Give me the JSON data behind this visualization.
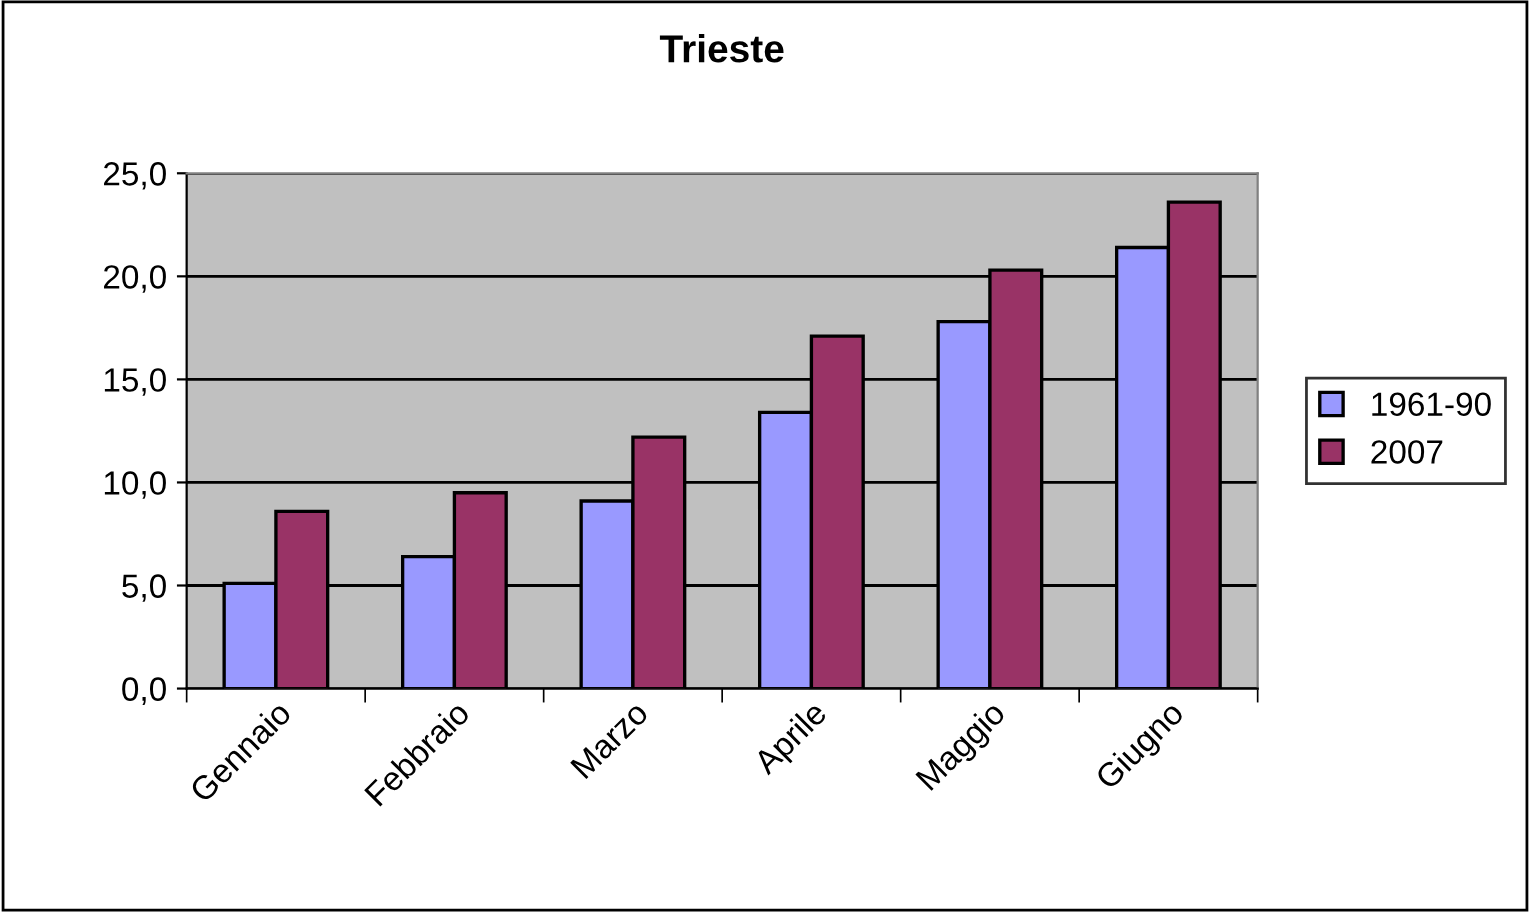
{
  "chart_data": {
    "type": "bar",
    "title": "Trieste",
    "categories": [
      "Gennaio",
      "Febbraio",
      "Marzo",
      "Aprile",
      "Maggio",
      "Giugno"
    ],
    "series": [
      {
        "name": "1961-90",
        "color": "#9999ff",
        "values": [
          5.1,
          6.4,
          9.1,
          13.4,
          17.8,
          21.4
        ]
      },
      {
        "name": "2007",
        "color": "#993366",
        "values": [
          8.6,
          9.5,
          12.2,
          17.1,
          20.3,
          23.6
        ]
      }
    ],
    "ylim": [
      0,
      25
    ],
    "yticks": [
      {
        "value": 0,
        "label": "0,0"
      },
      {
        "value": 5,
        "label": "5,0"
      },
      {
        "value": 10,
        "label": "10,0"
      },
      {
        "value": 15,
        "label": "15,0"
      },
      {
        "value": 20,
        "label": "20,0"
      },
      {
        "value": 25,
        "label": "25,0"
      }
    ],
    "grid": "y",
    "legend": "right"
  }
}
